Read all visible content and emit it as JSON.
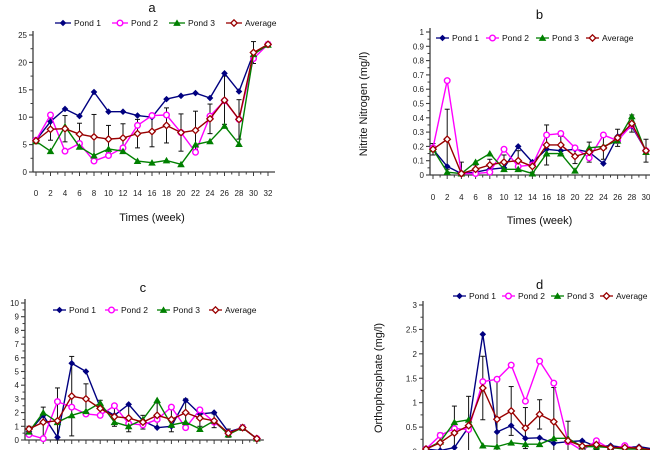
{
  "figure": {
    "background": "#ffffff",
    "panel_labels": [
      "a",
      "b",
      "c",
      "d"
    ]
  },
  "palette": {
    "pond1": "#000080",
    "pond2": "#ff00ff",
    "pond3": "#008000",
    "average": "#990000",
    "error_bar": "#111111",
    "axis": "#3d3d3d",
    "text": "#222222"
  },
  "chart_data": [
    {
      "id": "a",
      "type": "line",
      "title": "a",
      "xlabel": "Times (week)",
      "ylabel": "",
      "x": [
        0,
        2,
        4,
        6,
        8,
        10,
        12,
        14,
        16,
        18,
        20,
        22,
        24,
        26,
        28,
        30,
        32
      ],
      "xtick_labels": [
        "0",
        "2",
        "4",
        "6",
        "8",
        "10",
        "12",
        "14",
        "16",
        "18",
        "20",
        "22",
        "24",
        "26",
        "28",
        "30",
        "32"
      ],
      "ylim": [
        0,
        25
      ],
      "ytick_labels": [
        "0",
        "5",
        "10",
        "15",
        "20",
        "25"
      ],
      "grid": false,
      "legend_position": "top",
      "series": [
        {
          "name": "Pond 1",
          "color": "#000080",
          "marker": "filled-diamond",
          "values": [
            5.8,
            9.2,
            11.5,
            10.2,
            14.6,
            11.0,
            11.0,
            10.3,
            10.0,
            13.3,
            13.9,
            14.4,
            13.5,
            18.0,
            14.7,
            21.7,
            23.3
          ]
        },
        {
          "name": "Pond 2",
          "color": "#ff00ff",
          "marker": "open-circle",
          "values": [
            5.8,
            10.4,
            3.8,
            5.2,
            2.0,
            3.0,
            4.4,
            8.5,
            10.3,
            10.4,
            7.2,
            3.6,
            10.2,
            13.0,
            9.6,
            20.7,
            23.3
          ]
        },
        {
          "name": "Pond 3",
          "color": "#008000",
          "marker": "filled-triangle",
          "values": [
            5.6,
            3.8,
            8.3,
            4.6,
            3.0,
            4.2,
            3.8,
            2.0,
            1.7,
            2.1,
            1.4,
            5.0,
            5.6,
            8.4,
            5.1,
            21.5,
            23.2
          ]
        },
        {
          "name": "Average",
          "color": "#990000",
          "marker": "open-diamond",
          "values": [
            5.7,
            7.8,
            7.9,
            6.9,
            6.4,
            6.0,
            6.2,
            7.0,
            7.4,
            8.5,
            7.2,
            7.6,
            9.7,
            13.1,
            9.6,
            21.8,
            23.3
          ],
          "errors": [
            0.4,
            2.0,
            2.4,
            2.0,
            4.1,
            2.5,
            2.6,
            2.6,
            2.8,
            3.2,
            3.4,
            3.5,
            2.7,
            4.4,
            3.6,
            2.0,
            0.4
          ]
        }
      ]
    },
    {
      "id": "b",
      "type": "line",
      "title": "b",
      "xlabel": "Times (week)",
      "ylabel": "Nitrite Nitrogen (mg/l)",
      "x": [
        0,
        2,
        4,
        6,
        8,
        10,
        12,
        14,
        16,
        18,
        20,
        22,
        24,
        26,
        28,
        30
      ],
      "xtick_labels": [
        "0",
        "2",
        "4",
        "6",
        "8",
        "10",
        "12",
        "14",
        "16",
        "18",
        "20",
        "22",
        "24",
        "26",
        "28",
        "30"
      ],
      "ylim": [
        0,
        1
      ],
      "ytick_labels": [
        "0",
        "0.1",
        "0.2",
        "0.3",
        "0.4",
        "0.5",
        "0.6",
        "0.7",
        "0.8",
        "0.9",
        "1"
      ],
      "grid": false,
      "legend_position": "top",
      "series": [
        {
          "name": "Pond 1",
          "color": "#000080",
          "marker": "filled-diamond",
          "values": [
            0.18,
            0.06,
            0.01,
            0.02,
            0.04,
            0.05,
            0.2,
            0.09,
            0.18,
            0.17,
            0.18,
            0.16,
            0.08,
            0.27,
            0.34,
            0.17
          ]
        },
        {
          "name": "Pond 2",
          "color": "#ff00ff",
          "marker": "open-circle",
          "values": [
            0.19,
            0.66,
            0.01,
            0.01,
            0.02,
            0.18,
            0.06,
            0.07,
            0.28,
            0.29,
            0.19,
            0.12,
            0.28,
            0.24,
            0.35,
            0.17
          ]
        },
        {
          "name": "Pond 3",
          "color": "#008000",
          "marker": "filled-triangle",
          "values": [
            0.18,
            0.02,
            0.01,
            0.09,
            0.15,
            0.04,
            0.04,
            0.01,
            0.15,
            0.15,
            0.03,
            0.19,
            0.2,
            0.24,
            0.41,
            0.16
          ]
        },
        {
          "name": "Average",
          "color": "#990000",
          "marker": "open-diamond",
          "values": [
            0.18,
            0.25,
            0.01,
            0.04,
            0.07,
            0.09,
            0.1,
            0.06,
            0.21,
            0.21,
            0.13,
            0.16,
            0.19,
            0.26,
            0.36,
            0.17
          ],
          "errors": [
            0.04,
            0.21,
            0.08,
            0.03,
            0.04,
            0.05,
            0.07,
            0.04,
            0.14,
            0.06,
            0.05,
            0.07,
            0.08,
            0.06,
            0.06,
            0.08
          ]
        }
      ]
    },
    {
      "id": "c",
      "type": "line",
      "title": "c",
      "xlabel": "",
      "ylabel": "",
      "x": [
        0,
        2,
        4,
        6,
        8,
        10,
        12,
        14,
        16,
        18,
        20,
        22,
        24,
        26,
        28,
        30,
        32
      ],
      "xtick_labels": [],
      "ylim": [
        0,
        10
      ],
      "ytick_labels": [
        "0",
        "1",
        "2",
        "3",
        "4",
        "5",
        "6",
        "7",
        "8",
        "9",
        "10"
      ],
      "grid": false,
      "legend_position": "top",
      "series": [
        {
          "name": "Pond 1",
          "color": "#000080",
          "marker": "filled-diamond",
          "values": [
            0.6,
            1.8,
            0.2,
            5.6,
            5.0,
            2.4,
            1.8,
            2.6,
            1.4,
            0.9,
            1.0,
            2.9,
            1.9,
            2.0,
            0.6,
            0.9,
            0.1
          ]
        },
        {
          "name": "Pond 2",
          "color": "#ff00ff",
          "marker": "open-circle",
          "values": [
            0.4,
            0.1,
            2.8,
            2.4,
            1.9,
            1.8,
            2.5,
            1.2,
            1.1,
            1.5,
            2.4,
            0.9,
            2.2,
            1.3,
            0.5,
            0.9,
            0.1
          ]
        },
        {
          "name": "Pond 3",
          "color": "#008000",
          "marker": "filled-triangle",
          "values": [
            0.6,
            2.0,
            1.3,
            1.8,
            2.1,
            2.7,
            1.3,
            1.0,
            1.5,
            2.9,
            1.1,
            1.3,
            0.8,
            1.4,
            0.4,
            0.9,
            0.1
          ]
        },
        {
          "name": "Average",
          "color": "#990000",
          "marker": "open-diamond",
          "values": [
            0.8,
            1.3,
            1.4,
            3.2,
            3.0,
            2.3,
            1.7,
            1.6,
            1.3,
            1.8,
            1.5,
            2.0,
            1.6,
            1.4,
            0.5,
            0.9,
            0.1
          ],
          "errors": [
            0.2,
            1.1,
            2.4,
            2.9,
            1.1,
            0.6,
            0.7,
            1.0,
            0.5,
            0.9,
            0.9,
            1.0,
            0.6,
            0.5,
            0.3,
            0.2,
            0.1
          ]
        }
      ]
    },
    {
      "id": "d",
      "type": "line",
      "title": "d",
      "xlabel": "",
      "ylabel": "Orthophosphate (mg/l)",
      "x": [
        0,
        2,
        4,
        6,
        8,
        10,
        12,
        14,
        16,
        18,
        20,
        22,
        24,
        26,
        28,
        30,
        32
      ],
      "xtick_labels": [],
      "ylim": [
        0,
        3
      ],
      "ytick_labels": [
        "0",
        "0.5",
        "1",
        "1.5",
        "2",
        "2.5",
        "3"
      ],
      "grid": false,
      "legend_position": "top",
      "series": [
        {
          "name": "Pond 1",
          "color": "#000080",
          "marker": "filled-diamond",
          "values": [
            0.05,
            0.02,
            0.08,
            0.5,
            2.4,
            0.4,
            0.53,
            0.27,
            0.28,
            0.17,
            0.2,
            0.22,
            0.1,
            0.12,
            0.08,
            0.1,
            0.05
          ]
        },
        {
          "name": "Pond 2",
          "color": "#ff00ff",
          "marker": "open-circle",
          "values": [
            0.05,
            0.33,
            0.47,
            0.45,
            1.43,
            1.48,
            1.77,
            1.03,
            1.85,
            1.4,
            0.2,
            0.02,
            0.22,
            0.05,
            0.12,
            0.05,
            0.02
          ]
        },
        {
          "name": "Pond 3",
          "color": "#008000",
          "marker": "filled-triangle",
          "values": [
            0.05,
            0.2,
            0.6,
            0.65,
            0.12,
            0.1,
            0.18,
            0.15,
            0.15,
            0.27,
            0.27,
            0.1,
            0.1,
            0.08,
            0.05,
            0.05,
            0.02
          ]
        },
        {
          "name": "Average",
          "color": "#990000",
          "marker": "open-diamond",
          "values": [
            0.05,
            0.18,
            0.38,
            0.53,
            1.3,
            0.66,
            0.83,
            0.48,
            0.76,
            0.61,
            0.22,
            0.11,
            0.14,
            0.08,
            0.08,
            0.07,
            0.03
          ],
          "errors": [
            0.02,
            0.2,
            0.55,
            0.6,
            0.65,
            0.85,
            0.5,
            0.42,
            0.3,
            0.7,
            0.4,
            0.08,
            0.1,
            0.05,
            0.04,
            0.04,
            0.02
          ]
        }
      ]
    }
  ]
}
